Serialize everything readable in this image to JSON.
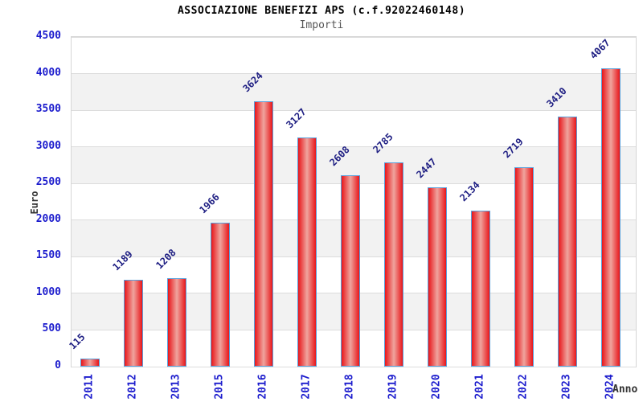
{
  "chart_data": {
    "type": "bar",
    "title": "ASSOCIAZIONE BENEFIZI APS (c.f.92022460148)",
    "subtitle": "Importi",
    "xlabel": "Anno",
    "ylabel": "Euro",
    "categories": [
      "2011",
      "2012",
      "2013",
      "2015",
      "2016",
      "2017",
      "2018",
      "2019",
      "2020",
      "2021",
      "2022",
      "2023",
      "2024"
    ],
    "values": [
      115,
      1189,
      1208,
      1966,
      3624,
      3127,
      2608,
      2785,
      2447,
      2134,
      2719,
      3410,
      4067
    ],
    "ylim": [
      0,
      4500
    ],
    "yticks": [
      0,
      500,
      1000,
      1500,
      2000,
      2500,
      3000,
      3500,
      4000,
      4500
    ],
    "grid": true,
    "legend_position": "none",
    "colors": {
      "bar_fill": "#e8161a",
      "bar_highlight": "#efa49e",
      "bar_border": "#58a0dc",
      "tick_label": "#1c1ccd",
      "value_label": "#1d1d82",
      "band": "#f2f2f2",
      "grid_line": "#dcdcdc",
      "title": "#000000",
      "subtitle": "#555555",
      "axis_title": "#333333",
      "background": "#ffffff"
    }
  }
}
